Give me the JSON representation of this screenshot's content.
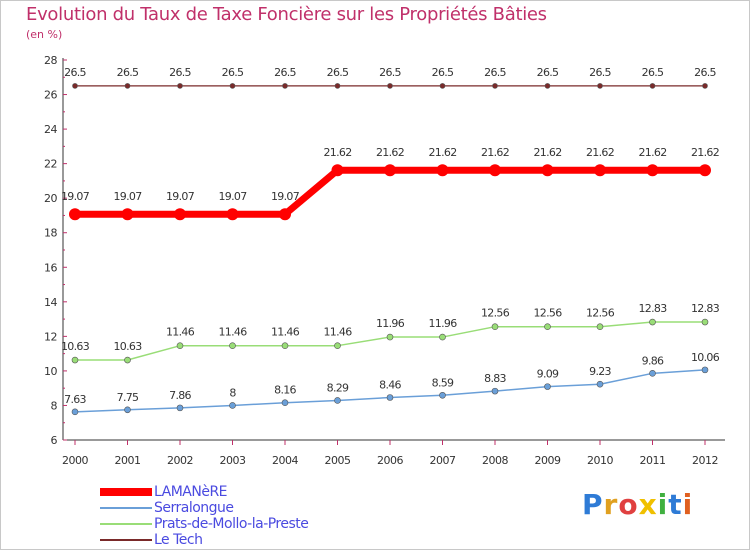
{
  "title": "Evolution du Taux de Taxe Foncière sur les Propriétés Bâties",
  "unit": "(en %)",
  "logo": {
    "text": "Proxiti",
    "colors": [
      "#2e7bd6",
      "#e0a020",
      "#e04040",
      "#f0c000",
      "#40b040",
      "#2e7bd6",
      "#e06020"
    ]
  },
  "chart_data": {
    "type": "line",
    "title": "Evolution du Taux de Taxe Foncière sur les Propriétés Bâties",
    "ylabel": "(en %)",
    "xlabel": "",
    "ylim": [
      6,
      28
    ],
    "yticks": [
      6,
      8,
      10,
      12,
      14,
      16,
      18,
      20,
      22,
      24,
      26,
      28
    ],
    "x": [
      "2000",
      "2001",
      "2002",
      "2003",
      "2004",
      "2005",
      "2006",
      "2007",
      "2008",
      "2009",
      "2010",
      "2011",
      "2012"
    ],
    "grid": false,
    "legend_position": "bottom-left",
    "series": [
      {
        "name": "LAMANèRE",
        "color": "#ff0000",
        "values": [
          19.07,
          19.07,
          19.07,
          19.07,
          19.07,
          21.62,
          21.62,
          21.62,
          21.62,
          21.62,
          21.62,
          21.62,
          21.62
        ],
        "labels": [
          "19.07",
          "19.07",
          "19.07",
          "19.07",
          "19.07",
          "21.62",
          "21.62",
          "21.62",
          "21.62",
          "21.62",
          "21.62",
          "21.62",
          "21.62"
        ]
      },
      {
        "name": "Serralongue",
        "color": "#6a9fd8",
        "values": [
          7.63,
          7.75,
          7.86,
          8,
          8.16,
          8.29,
          8.46,
          8.59,
          8.83,
          9.09,
          9.23,
          9.86,
          10.06
        ],
        "labels": [
          "7.63",
          "7.75",
          "7.86",
          "8",
          "8.16",
          "8.29",
          "8.46",
          "8.59",
          "8.83",
          "9.09",
          "9.23",
          "9.86",
          "10.06"
        ]
      },
      {
        "name": "Prats-de-Mollo-la-Preste",
        "color": "#99dd77",
        "values": [
          10.63,
          10.63,
          11.46,
          11.46,
          11.46,
          11.46,
          11.96,
          11.96,
          12.56,
          12.56,
          12.56,
          12.83,
          12.83
        ],
        "labels": [
          "10.63",
          "10.63",
          "11.46",
          "11.46",
          "11.46",
          "11.46",
          "11.96",
          "11.96",
          "12.56",
          "12.56",
          "12.56",
          "12.83",
          "12.83"
        ]
      },
      {
        "name": "Le Tech",
        "color": "#7a2a2a",
        "values": [
          26.5,
          26.5,
          26.5,
          26.5,
          26.5,
          26.5,
          26.5,
          26.5,
          26.5,
          26.5,
          26.5,
          26.5,
          26.5
        ],
        "labels": [
          "26.5",
          "26.5",
          "26.5",
          "26.5",
          "26.5",
          "26.5",
          "26.5",
          "26.5",
          "26.5",
          "26.5",
          "26.5",
          "26.5",
          "26.5"
        ]
      }
    ]
  }
}
